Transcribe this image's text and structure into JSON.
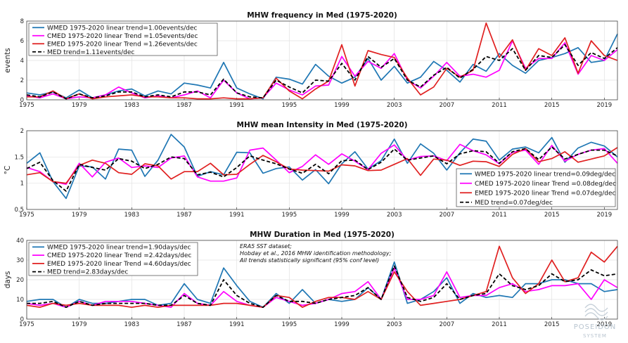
{
  "chart_data": [
    {
      "type": "line",
      "title": "MHW frequency in Med (1975-2020)",
      "ylabel": "events",
      "xlabel": "",
      "xlim": [
        1975,
        2020
      ],
      "ylim": [
        0,
        8
      ],
      "xticks": [
        "1975",
        "1979",
        "1983",
        "1987",
        "1991",
        "1995",
        "1999",
        "2003",
        "2007",
        "2011",
        "2015",
        "2019"
      ],
      "yticks": [
        "0",
        "2",
        "4",
        "6",
        "8"
      ],
      "legend_position": "top-left",
      "x": [
        1975,
        1976,
        1977,
        1978,
        1979,
        1980,
        1981,
        1982,
        1983,
        1984,
        1985,
        1986,
        1987,
        1988,
        1989,
        1990,
        1991,
        1992,
        1993,
        1994,
        1995,
        1996,
        1997,
        1998,
        1999,
        2000,
        2001,
        2002,
        2003,
        2004,
        2005,
        2006,
        2007,
        2008,
        2009,
        2010,
        2011,
        2012,
        2013,
        2014,
        2015,
        2016,
        2017,
        2018,
        2019,
        2020
      ],
      "series": [
        {
          "name": "WMED 1975-2020 linear trend=1.00events/dec",
          "color": "#1f77b4",
          "dash": false,
          "values": [
            0.7,
            0.5,
            0.8,
            0.2,
            1.0,
            0.2,
            0.5,
            0.9,
            1.1,
            0.4,
            0.9,
            0.6,
            1.7,
            1.5,
            1.2,
            3.8,
            1.2,
            0.6,
            0.1,
            2.3,
            2.1,
            1.6,
            3.6,
            2.4,
            1.7,
            2.3,
            4.2,
            2.0,
            3.4,
            1.7,
            2.3,
            3.9,
            3.0,
            1.8,
            3.6,
            2.9,
            4.7,
            3.5,
            2.7,
            4.0,
            4.3,
            4.7,
            5.3,
            3.8,
            4.0,
            6.7
          ]
        },
        {
          "name": "CMED 1975-2020 linear Trend =1.05events/dec",
          "color": "#ff00ff",
          "dash": false,
          "values": [
            0.4,
            0.2,
            0.6,
            0.1,
            0.3,
            0.2,
            0.5,
            1.3,
            0.7,
            0.2,
            0.4,
            0.2,
            0.5,
            0.9,
            0.2,
            2.0,
            0.7,
            0.1,
            0.2,
            1.7,
            1.0,
            0.5,
            1.4,
            1.5,
            4.4,
            2.4,
            3.9,
            3.2,
            4.7,
            2.0,
            1.2,
            2.4,
            3.8,
            2.4,
            2.6,
            2.3,
            3.0,
            6.0,
            3.2,
            4.2,
            4.2,
            5.8,
            2.6,
            4.5,
            4.0,
            5.1
          ]
        },
        {
          "name": "EMED 1975-2020 linear Trend =1.26events/dec",
          "color": "#e02020",
          "dash": false,
          "values": [
            0.3,
            0.3,
            0.9,
            0.1,
            0.6,
            0.1,
            0.3,
            0.4,
            0.5,
            0.3,
            0.3,
            0.2,
            0.2,
            0.1,
            0.1,
            0.2,
            0.1,
            0.1,
            0.2,
            2.2,
            0.9,
            0.1,
            1.1,
            1.9,
            5.6,
            1.4,
            5.0,
            4.6,
            4.3,
            2.2,
            0.5,
            1.3,
            3.2,
            2.3,
            3.0,
            7.8,
            4.3,
            6.1,
            3.0,
            5.2,
            4.5,
            6.3,
            2.7,
            6.0,
            4.5,
            4.0
          ]
        },
        {
          "name": "MED trend=1.11events/dec",
          "color": "#000000",
          "dash": true,
          "values": [
            0.5,
            0.3,
            0.8,
            0.1,
            0.6,
            0.2,
            0.4,
            0.8,
            0.8,
            0.3,
            0.5,
            0.3,
            0.8,
            0.8,
            0.5,
            2.1,
            0.7,
            0.3,
            0.2,
            2.0,
            1.3,
            0.7,
            2.0,
            1.9,
            3.7,
            2.0,
            4.4,
            3.3,
            4.2,
            2.0,
            1.3,
            2.5,
            3.3,
            2.2,
            3.1,
            4.4,
            4.0,
            5.2,
            3.0,
            4.5,
            4.3,
            5.6,
            3.5,
            4.8,
            4.2,
            5.3
          ]
        }
      ]
    },
    {
      "type": "line",
      "title": "MHW mean Intensity in Med (1975-2020)",
      "ylabel": "°C",
      "xlabel": "",
      "xlim": [
        1975,
        2020
      ],
      "ylim": [
        0.5,
        2
      ],
      "xticks": [
        "1975",
        "1979",
        "1983",
        "1987",
        "1991",
        "1995",
        "1999",
        "2003",
        "2007",
        "2011",
        "2015",
        "2019"
      ],
      "yticks": [
        "0.5",
        "1",
        "1.5",
        "2"
      ],
      "legend_position": "bottom-right",
      "x": [
        1975,
        1976,
        1977,
        1978,
        1979,
        1980,
        1981,
        1982,
        1983,
        1984,
        1985,
        1986,
        1987,
        1988,
        1989,
        1990,
        1991,
        1992,
        1993,
        1994,
        1995,
        1996,
        1997,
        1998,
        1999,
        2000,
        2001,
        2002,
        2003,
        2004,
        2005,
        2006,
        2007,
        2008,
        2009,
        2010,
        2011,
        2012,
        2013,
        2014,
        2015,
        2016,
        2017,
        2018,
        2019,
        2020
      ],
      "series": [
        {
          "name": "WMED 1975-2020 linear trend=0.09deg/dec",
          "color": "#1f77b4",
          "dash": false,
          "values": [
            1.38,
            1.58,
            1.03,
            0.71,
            1.33,
            1.31,
            1.08,
            1.65,
            1.63,
            1.13,
            1.44,
            1.93,
            1.69,
            1.13,
            1.22,
            1.16,
            1.59,
            1.58,
            1.19,
            1.28,
            1.31,
            1.06,
            1.26,
            0.99,
            1.37,
            1.6,
            1.27,
            1.43,
            1.84,
            1.38,
            1.75,
            1.57,
            1.25,
            1.58,
            1.84,
            1.8,
            1.44,
            1.65,
            1.69,
            1.58,
            1.87,
            1.4,
            1.67,
            1.78,
            1.71,
            1.5
          ]
        },
        {
          "name": "CMED 1975-2020 linear Trend =0.08deg/dec",
          "color": "#ff00ff",
          "dash": false,
          "values": [
            1.3,
            1.22,
            1.03,
            0.98,
            1.38,
            1.12,
            1.4,
            1.48,
            1.3,
            1.33,
            1.3,
            1.48,
            1.52,
            1.12,
            1.04,
            1.04,
            1.1,
            1.63,
            1.67,
            1.44,
            1.2,
            1.32,
            1.54,
            1.36,
            1.56,
            1.42,
            1.26,
            1.57,
            1.73,
            1.44,
            1.51,
            1.52,
            1.43,
            1.74,
            1.62,
            1.54,
            1.37,
            1.59,
            1.63,
            1.36,
            1.72,
            1.42,
            1.55,
            1.63,
            1.66,
            1.38
          ]
        },
        {
          "name": "EMED 1975-2020 linear Trend =0.07deg/dec",
          "color": "#e02020",
          "dash": false,
          "values": [
            1.16,
            1.2,
            1.03,
            1.0,
            1.34,
            1.44,
            1.38,
            1.2,
            1.17,
            1.37,
            1.33,
            1.08,
            1.22,
            1.22,
            1.38,
            1.16,
            1.17,
            1.36,
            1.53,
            1.41,
            1.27,
            1.25,
            1.24,
            1.23,
            1.35,
            1.33,
            1.24,
            1.25,
            1.36,
            1.47,
            1.15,
            1.46,
            1.44,
            1.34,
            1.42,
            1.41,
            1.32,
            1.55,
            1.66,
            1.41,
            1.47,
            1.6,
            1.4,
            1.46,
            1.52,
            1.68
          ]
        },
        {
          "name": "MED trend=0.07deg/dec",
          "color": "#000000",
          "dash": true,
          "values": [
            1.28,
            1.4,
            1.05,
            0.85,
            1.36,
            1.3,
            1.25,
            1.47,
            1.42,
            1.28,
            1.36,
            1.5,
            1.47,
            1.16,
            1.21,
            1.12,
            1.3,
            1.52,
            1.44,
            1.37,
            1.27,
            1.19,
            1.36,
            1.18,
            1.43,
            1.44,
            1.26,
            1.4,
            1.65,
            1.44,
            1.48,
            1.52,
            1.37,
            1.56,
            1.62,
            1.6,
            1.38,
            1.6,
            1.66,
            1.45,
            1.69,
            1.46,
            1.55,
            1.63,
            1.63,
            1.52
          ]
        }
      ]
    },
    {
      "type": "line",
      "title": "MHW Duration in Med (1975-2020)",
      "ylabel": "days",
      "xlabel": "",
      "xlim": [
        1975,
        2020
      ],
      "ylim": [
        0,
        40
      ],
      "xticks": [
        "1975",
        "1979",
        "1983",
        "1987",
        "1991",
        "1995",
        "1999",
        "2003",
        "2007",
        "2011",
        "2015",
        "2019"
      ],
      "yticks": [
        "0",
        "10",
        "20",
        "30",
        "40"
      ],
      "legend_position": "top-left",
      "annotation": [
        "ERA5 SST dataset;",
        "Hobday et al., 2016 MHW identification methodology;",
        "All trends statistically significant (95% conf level)"
      ],
      "x": [
        1975,
        1976,
        1977,
        1978,
        1979,
        1980,
        1981,
        1982,
        1983,
        1984,
        1985,
        1986,
        1987,
        1988,
        1989,
        1990,
        1991,
        1992,
        1993,
        1994,
        1995,
        1996,
        1997,
        1998,
        1999,
        2000,
        2001,
        2002,
        2003,
        2004,
        2005,
        2006,
        2007,
        2008,
        2009,
        2010,
        2011,
        2012,
        2013,
        2014,
        2015,
        2016,
        2017,
        2018,
        2019,
        2020
      ],
      "series": [
        {
          "name": "WMED 1975-2020 linear trend=1.90days/dec",
          "color": "#1f77b4",
          "dash": false,
          "values": [
            9,
            10,
            10,
            6,
            10,
            8,
            8,
            9,
            10,
            10,
            7,
            8,
            18,
            10,
            8,
            26,
            17,
            9,
            6,
            13,
            8,
            15,
            8,
            10,
            9,
            10,
            16,
            10,
            29,
            8,
            10,
            14,
            21,
            8,
            13,
            11,
            12,
            11,
            18,
            18,
            20,
            20,
            18,
            18,
            14,
            15
          ]
        },
        {
          "name": "CMED 1975-2020 linear Trend =2.42days/dec",
          "color": "#ff00ff",
          "dash": false,
          "values": [
            8,
            7,
            8,
            6,
            9,
            7,
            9,
            9,
            9,
            8,
            7,
            6,
            13,
            8,
            7,
            14,
            9,
            7,
            6,
            11,
            9,
            7,
            8,
            10,
            13,
            14,
            19,
            10,
            26,
            10,
            10,
            12,
            24,
            11,
            12,
            12,
            16,
            18,
            14,
            15,
            17,
            17,
            18,
            10,
            20,
            16
          ]
        },
        {
          "name": "EMED 1975-2020 linear Trend =4.60days/dec",
          "color": "#e02020",
          "dash": false,
          "values": [
            7,
            6,
            8,
            7,
            8,
            7,
            7,
            7,
            6,
            7,
            6,
            7,
            7,
            7,
            7,
            8,
            8,
            7,
            6,
            12,
            11,
            6,
            9,
            11,
            11,
            10,
            14,
            10,
            24,
            14,
            7,
            8,
            9,
            10,
            12,
            14,
            37,
            21,
            13,
            18,
            30,
            19,
            21,
            34,
            29,
            37
          ]
        },
        {
          "name": "MED trend=2.83days/dec",
          "color": "#000000",
          "dash": true,
          "values": [
            8,
            8,
            9,
            6,
            9,
            7,
            8,
            8,
            8,
            8,
            7,
            7,
            12,
            8,
            7,
            20,
            12,
            8,
            6,
            12,
            9,
            9,
            8,
            10,
            11,
            12,
            16,
            10,
            27,
            11,
            9,
            11,
            18,
            10,
            12,
            13,
            23,
            17,
            15,
            17,
            23,
            19,
            20,
            25,
            22,
            23
          ]
        }
      ]
    }
  ],
  "watermark": {
    "line1": "POSEIDON",
    "line2": "SYSTEM"
  }
}
